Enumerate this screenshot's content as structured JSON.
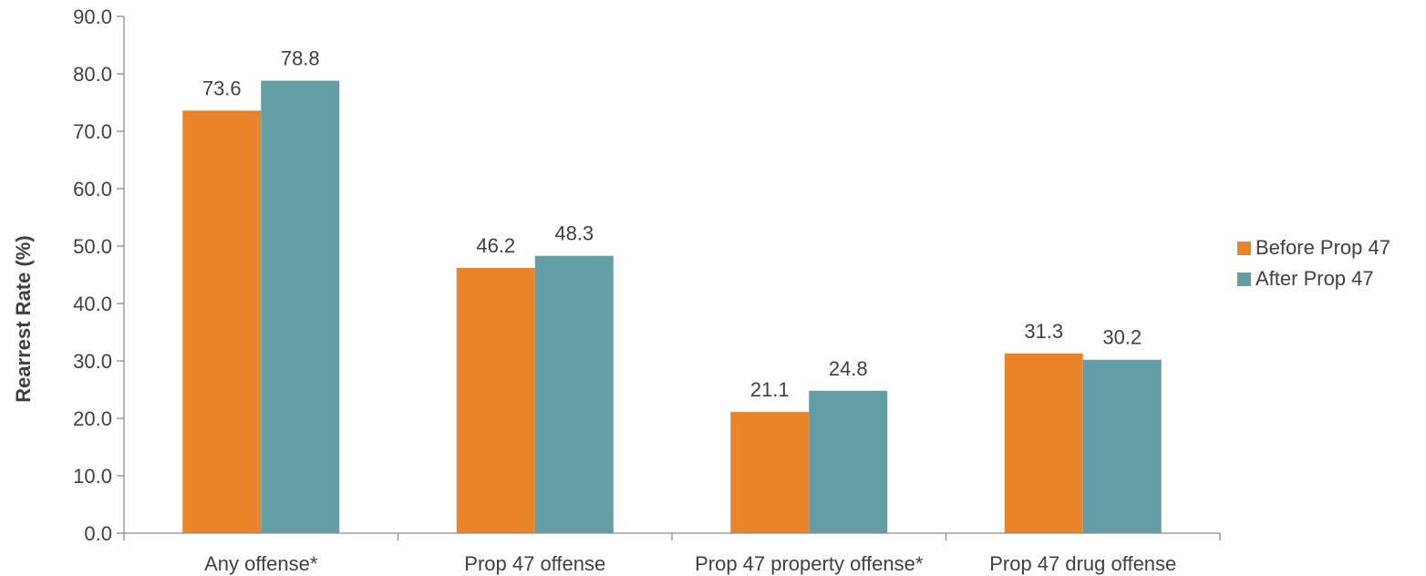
{
  "chart_data": {
    "type": "bar",
    "ylabel": "Rearrest Rate (%)",
    "xlabel": "",
    "ylim": [
      0,
      90
    ],
    "ytick_step": 10,
    "ytick_labels": [
      "0.0",
      "10.0",
      "20.0",
      "30.0",
      "40.0",
      "50.0",
      "60.0",
      "70.0",
      "80.0",
      "90.0"
    ],
    "categories": [
      "Any offense*",
      "Prop 47 offense",
      "Prop 47 property offense*",
      "Prop 47 drug offense"
    ],
    "series": [
      {
        "name": "Before Prop 47",
        "color": "#E8852A",
        "values": [
          73.6,
          46.2,
          21.1,
          31.3
        ],
        "labels": [
          "73.6",
          "46.2",
          "21.1",
          "31.3"
        ]
      },
      {
        "name": "After Prop 47",
        "color": "#639EA5",
        "values": [
          78.8,
          48.3,
          24.8,
          30.2
        ],
        "labels": [
          "78.8",
          "48.3",
          "24.8",
          "30.2"
        ]
      }
    ],
    "grid": false,
    "legend_position": "right"
  }
}
